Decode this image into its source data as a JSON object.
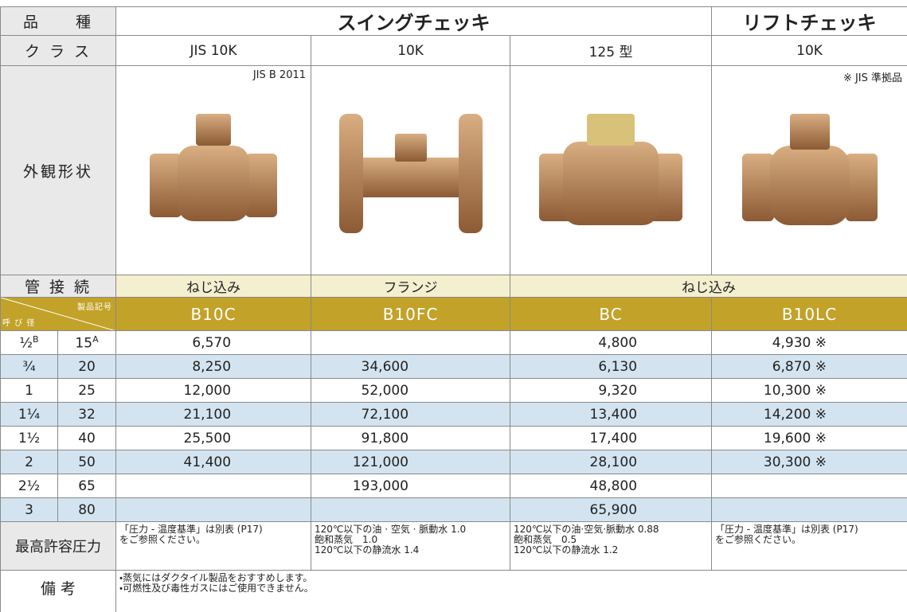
{
  "header": {
    "kind_label": "品　　種",
    "swing": "スイングチェッキ",
    "lift": "リフトチェッキ"
  },
  "class": {
    "label": "ク ラ ス",
    "values": [
      "JIS 10K",
      "10K",
      "125 型",
      "10K"
    ]
  },
  "appearance": {
    "label": "外観形状",
    "notes": [
      "JIS B 2011",
      "※ JIS 準拠品"
    ]
  },
  "connection": {
    "label": "管 接 続",
    "values": [
      "ねじ込み",
      "フランジ",
      "ねじ込み"
    ]
  },
  "codes": {
    "product_label": "製品記号",
    "size_label": "呼 び 径",
    "inch_unit": "B",
    "mm_unit": "A",
    "values": [
      "B10C",
      "B10FC",
      "BC",
      "B10LC"
    ]
  },
  "rows": [
    {
      "inch": "½",
      "mm": "15",
      "prices": [
        "6,570",
        null,
        "4,800",
        "4,930 ※"
      ]
    },
    {
      "inch": "¾",
      "mm": "20",
      "prices": [
        "8,250",
        "34,600",
        "6,130",
        "6,870 ※"
      ]
    },
    {
      "inch": "1",
      "mm": "25",
      "prices": [
        "12,000",
        "52,000",
        "9,320",
        "10,300 ※"
      ]
    },
    {
      "inch": "1¼",
      "mm": "32",
      "prices": [
        "21,100",
        "72,100",
        "13,400",
        "14,200 ※"
      ]
    },
    {
      "inch": "1½",
      "mm": "40",
      "prices": [
        "25,500",
        "91,800",
        "17,400",
        "19,600 ※"
      ]
    },
    {
      "inch": "2",
      "mm": "50",
      "prices": [
        "41,400",
        "121,000",
        "28,100",
        "30,300 ※"
      ]
    },
    {
      "inch": "2½",
      "mm": "65",
      "prices": [
        null,
        "193,000",
        "48,800",
        null
      ]
    },
    {
      "inch": "3",
      "mm": "80",
      "prices": [
        null,
        null,
        "65,900",
        null
      ]
    }
  ],
  "pressure": {
    "label": "最高許容圧力",
    "values": [
      [
        "「圧力 - 温度基準」は別表 (P17)",
        "をご参照ください。"
      ],
      [
        "120℃以下の油 · 空気 · 脈動水 1.0",
        "飽和蒸気　1.0",
        "120℃以下の静流水 1.4"
      ],
      [
        "120℃以下の油·空気·脈動水 0.88",
        "飽和蒸気　0.5",
        "120℃以下の静流水 1.2"
      ],
      [
        "「圧力 - 温度基準」は別表 (P17)",
        "をご参照ください。"
      ]
    ]
  },
  "remarks": {
    "label": "備 考",
    "lines": [
      "・蒸気にはダクタイル製品をおすすめします。",
      "・可燃性及び毒性ガスにはご使用できません。"
    ]
  }
}
